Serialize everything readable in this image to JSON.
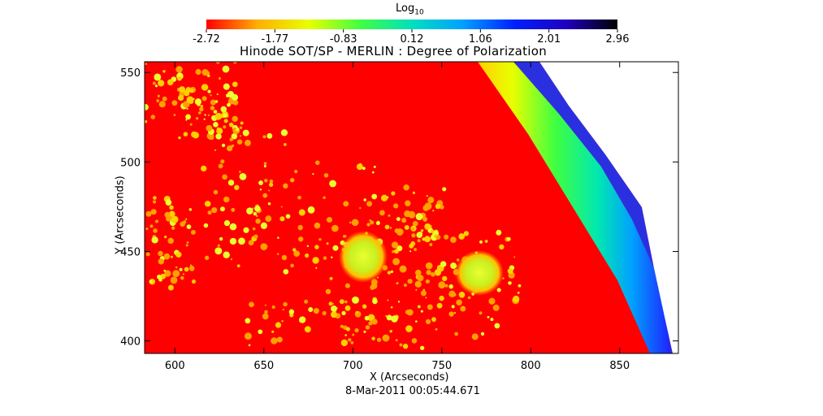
{
  "colorbar": {
    "title_base": "Log",
    "title_sub": "10",
    "tick_labels": [
      "-2.72",
      "-1.77",
      "-0.83",
      "0.12",
      "1.06",
      "2.01",
      "2.96"
    ],
    "range": [
      -2.72,
      2.96
    ],
    "colors": [
      "#ff0000",
      "#ffb000",
      "#e8ff00",
      "#40ff40",
      "#00e0c0",
      "#00a0ff",
      "#0020ff",
      "#2000c0",
      "#000000"
    ]
  },
  "chart_data": {
    "type": "heatmap",
    "title": "Hinode SOT/SP - MERLIN : Degree of Polarization",
    "xlabel": "X (Arcseconds)",
    "ylabel": "Y (Arcseconds)",
    "date": "8-Mar-2011 00:05:44.671",
    "xlim": [
      583,
      883
    ],
    "ylim": [
      393,
      556
    ],
    "x_ticks": [
      600,
      650,
      700,
      750,
      800,
      850
    ],
    "y_ticks": [
      400,
      450,
      500,
      550
    ],
    "colorscale": "log10, rainbow (red low to black high)",
    "features": [
      {
        "kind": "sunspot",
        "x": 707,
        "y": 446
      },
      {
        "kind": "sunspot",
        "x": 770,
        "y": 436
      }
    ],
    "limb_x_at_top": 780,
    "limb_x_at_bottom": 868
  }
}
